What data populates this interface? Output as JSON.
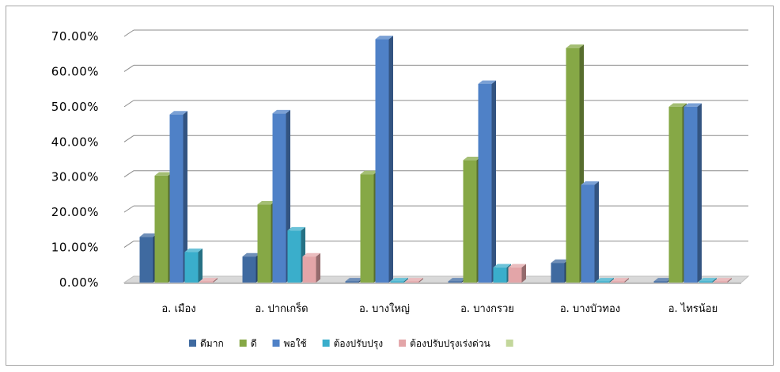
{
  "chart_data": {
    "type": "bar",
    "categories": [
      "อ. เมือง",
      "อ. ปากเกร็ด",
      "อ. บางใหญ่",
      "อ. บางกรวย",
      "อ. บางบัวทอง",
      "อ. ไทรน้อย"
    ],
    "y_ticks": [
      "0.00%",
      "10.00%",
      "20.00%",
      "30.00%",
      "40.00%",
      "50.00%",
      "60.00%",
      "70.00%"
    ],
    "ylim": [
      0,
      70
    ],
    "grid": true,
    "legend_position": "bottom",
    "series": [
      {
        "name": "ดีมาก",
        "color": "#3f6aa0",
        "values": [
          13.0,
          7.4,
          0,
          0,
          5.6,
          0
        ]
      },
      {
        "name": "ดี",
        "color": "#86a846",
        "values": [
          30.4,
          22.2,
          30.8,
          34.8,
          66.7,
          50.0
        ]
      },
      {
        "name": "พอใช้",
        "color": "#4f81c7",
        "values": [
          47.8,
          48.1,
          69.2,
          56.5,
          27.8,
          50.0
        ]
      },
      {
        "name": "ต้องปรับปรุง",
        "color": "#3aaecb",
        "values": [
          8.7,
          14.8,
          0,
          4.3,
          0,
          0
        ]
      },
      {
        "name": "ต้องปรับปรุงเร่งด่วน",
        "color": "#e3a5a8",
        "values": [
          0,
          7.4,
          0,
          4.3,
          0,
          0
        ]
      },
      {
        "name": "",
        "color": "#c3d79b",
        "values": [
          0,
          0,
          0,
          0,
          0,
          0
        ]
      }
    ]
  }
}
